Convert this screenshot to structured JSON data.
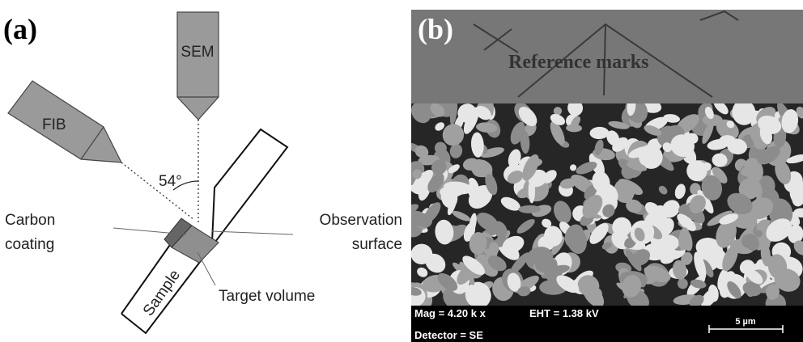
{
  "panel_a": {
    "label": "(a)",
    "sem": "SEM",
    "fib": "FIB",
    "angle": "54°",
    "carbon_coating": [
      "Carbon",
      "coating"
    ],
    "observation_surface": [
      "Observation",
      "surface"
    ],
    "sample": "Sample",
    "target_volume": "Target volume"
  },
  "panel_b": {
    "label": "(b)",
    "annotation": "Reference marks",
    "mag": "Mag = 4.20 k x",
    "eht": "EHT = 1.38 kV",
    "scale_bar": "5 µm",
    "detector": "Detector = SE"
  }
}
